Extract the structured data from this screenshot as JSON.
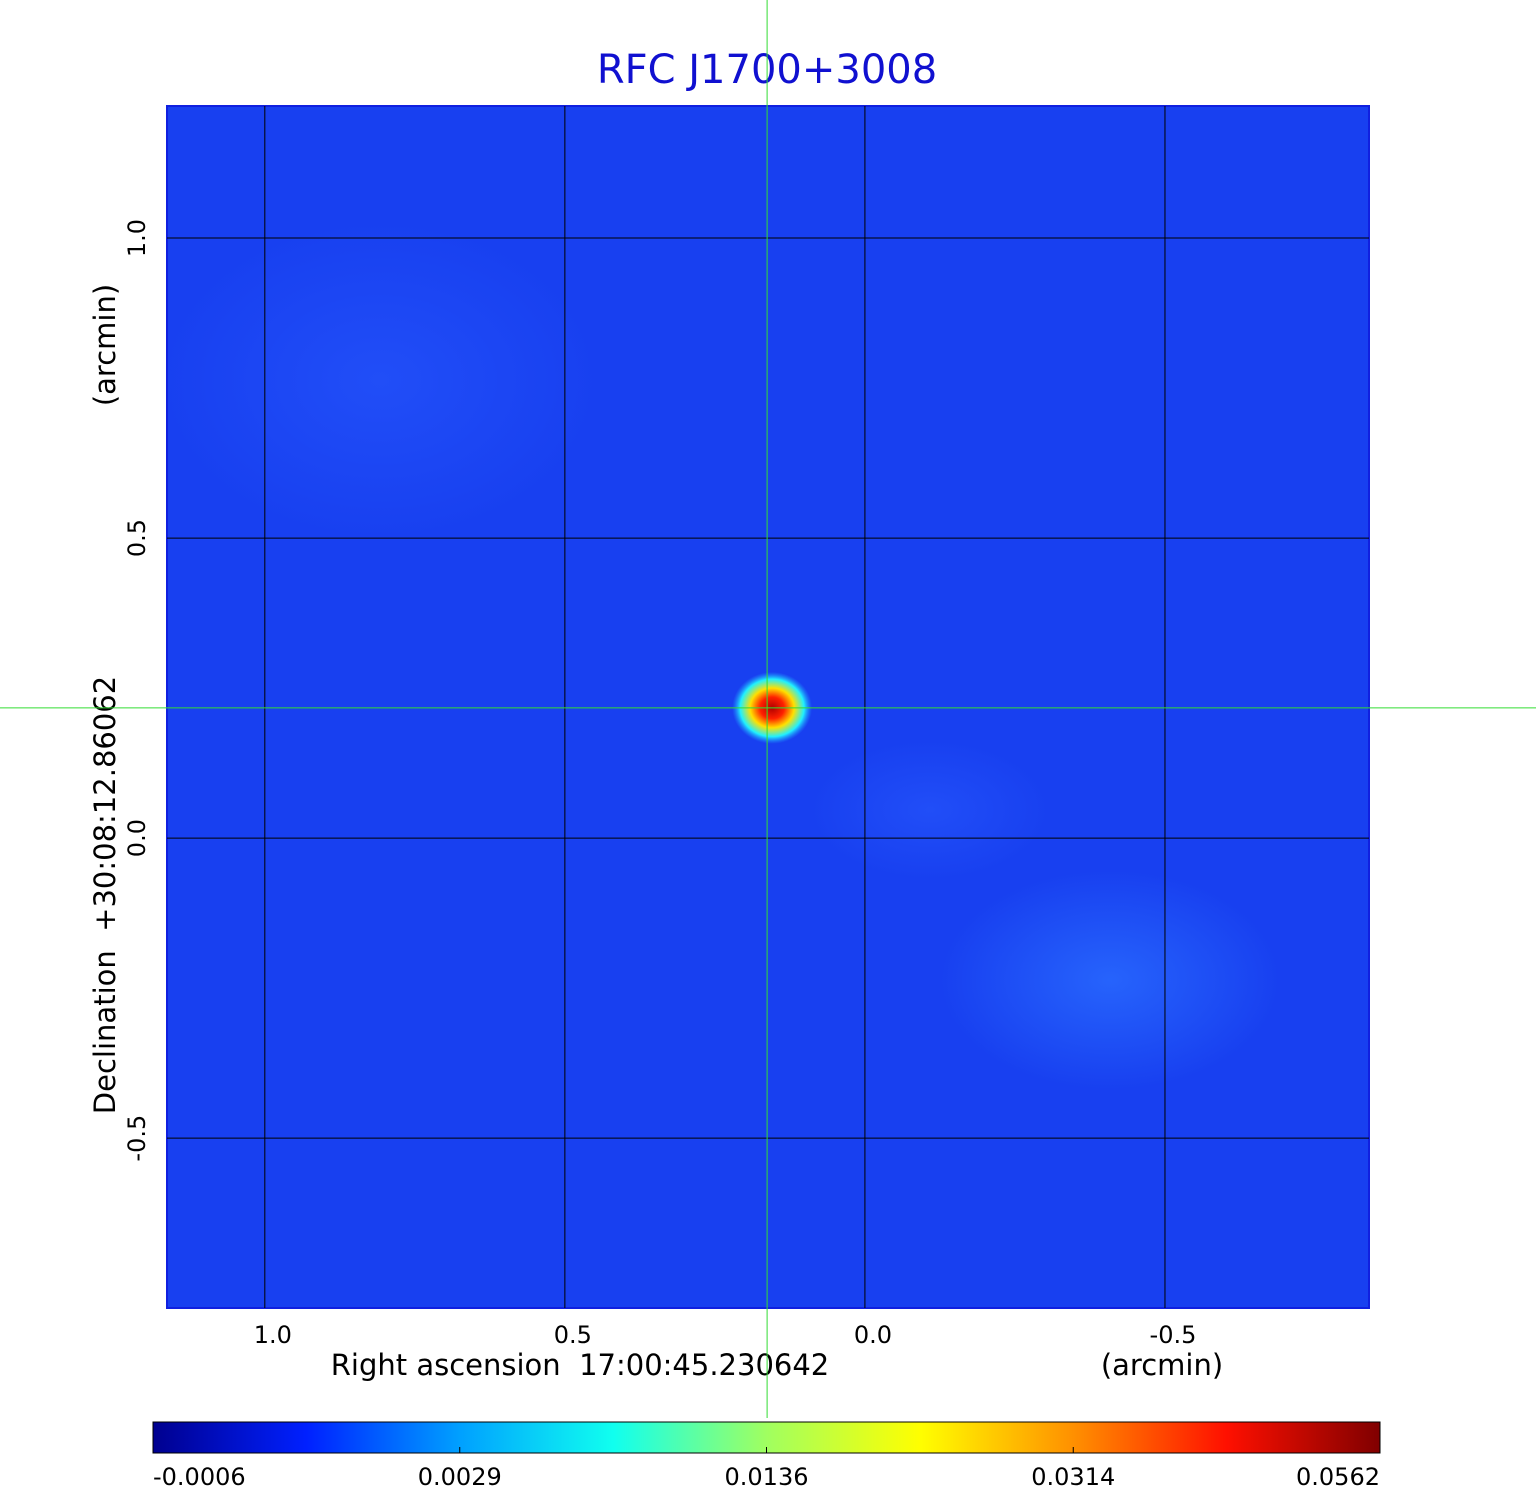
{
  "chart_data": {
    "type": "image",
    "title": "RFC J1700+3008",
    "xlabel": "Right ascension  17:00:45.230642",
    "xunit": "(arcmin)",
    "ylabel": "Declination  +30:08:12.86062",
    "yunit": "(arcmin)",
    "xlim": [
      1.163,
      -0.84
    ],
    "ylim": [
      -0.783,
      1.22
    ],
    "xticks": [
      {
        "value": 1,
        "label": "1.0"
      },
      0.5,
      {
        "value": 0,
        "label": "0.0"
      },
      -0.5
    ],
    "yticks": [
      {
        "value": 1,
        "label": "1.0"
      },
      0.5,
      {
        "value": 0,
        "label": "0.0"
      },
      -0.5
    ],
    "grid": true,
    "crosshair": {
      "x": 0.163,
      "y": 0.217,
      "color": "#33dd33"
    },
    "colorbar_ticks": [
      -0.0006,
      0.0029,
      0.0136,
      0.0314,
      0.0562
    ],
    "colormap": [
      "#00008f",
      "#0020ff",
      "#00a0ff",
      "#10ffef",
      "#a0ff60",
      "#ffff00",
      "#ff9000",
      "#ff1000",
      "#800000"
    ]
  }
}
